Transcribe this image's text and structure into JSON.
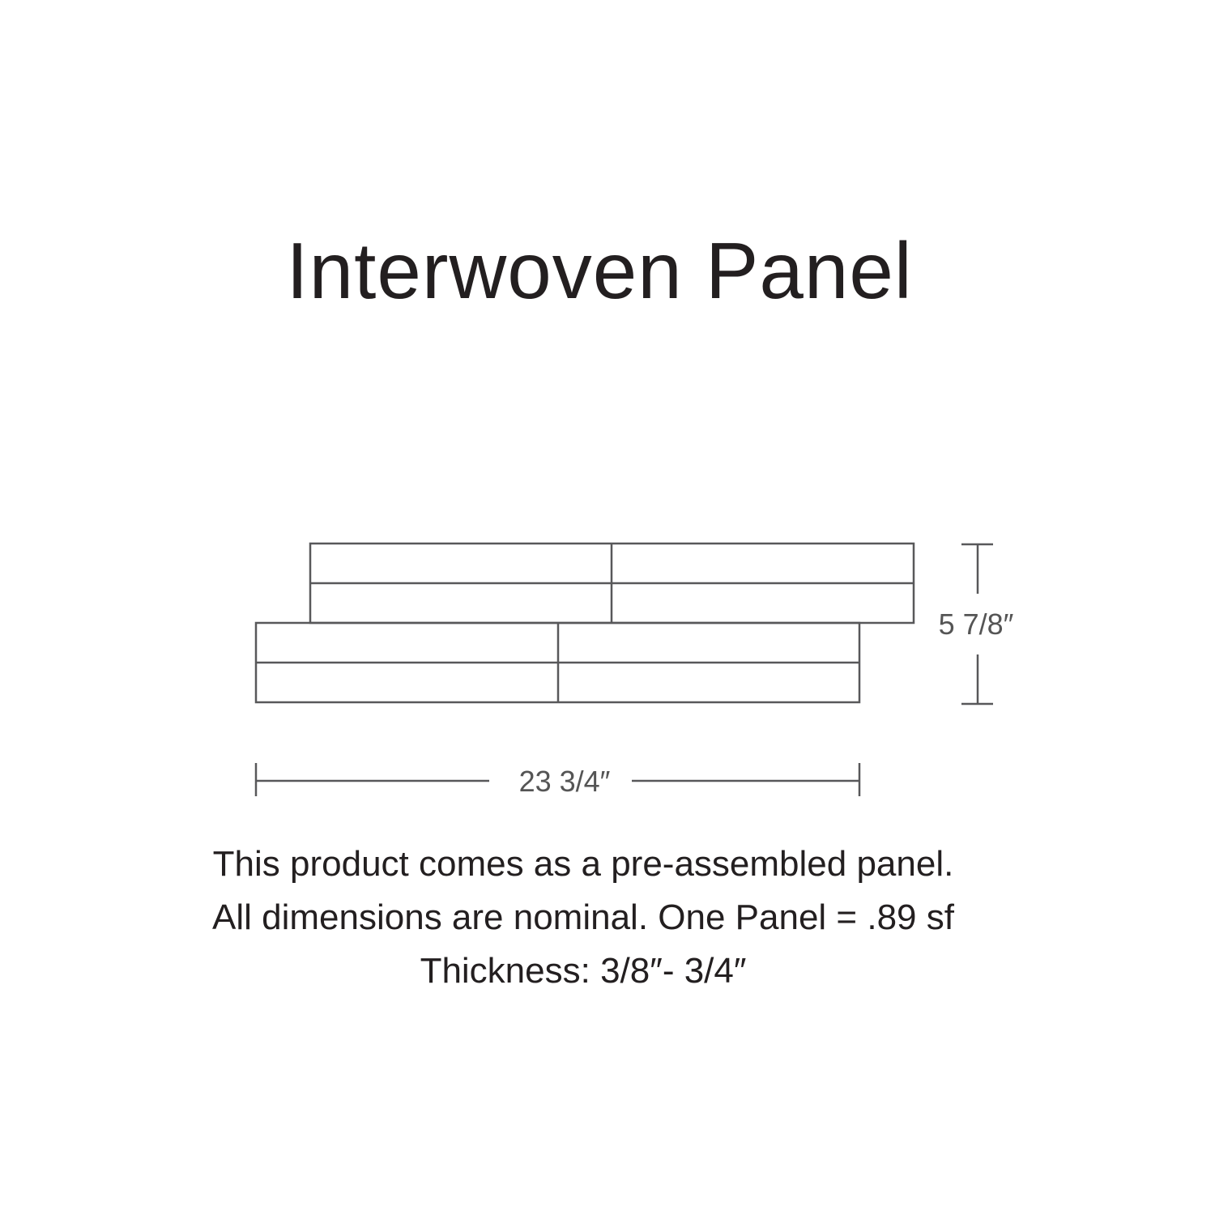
{
  "title": "Interwoven Panel",
  "diagram": {
    "height_label": "5 7/8″",
    "width_label": "23 3/4″",
    "line_color": "#58585a"
  },
  "notes": [
    "This product comes as a pre-assembled panel.",
    "All dimensions are nominal. One Panel = .89 sf",
    "Thickness: 3/8″- 3/4″"
  ]
}
